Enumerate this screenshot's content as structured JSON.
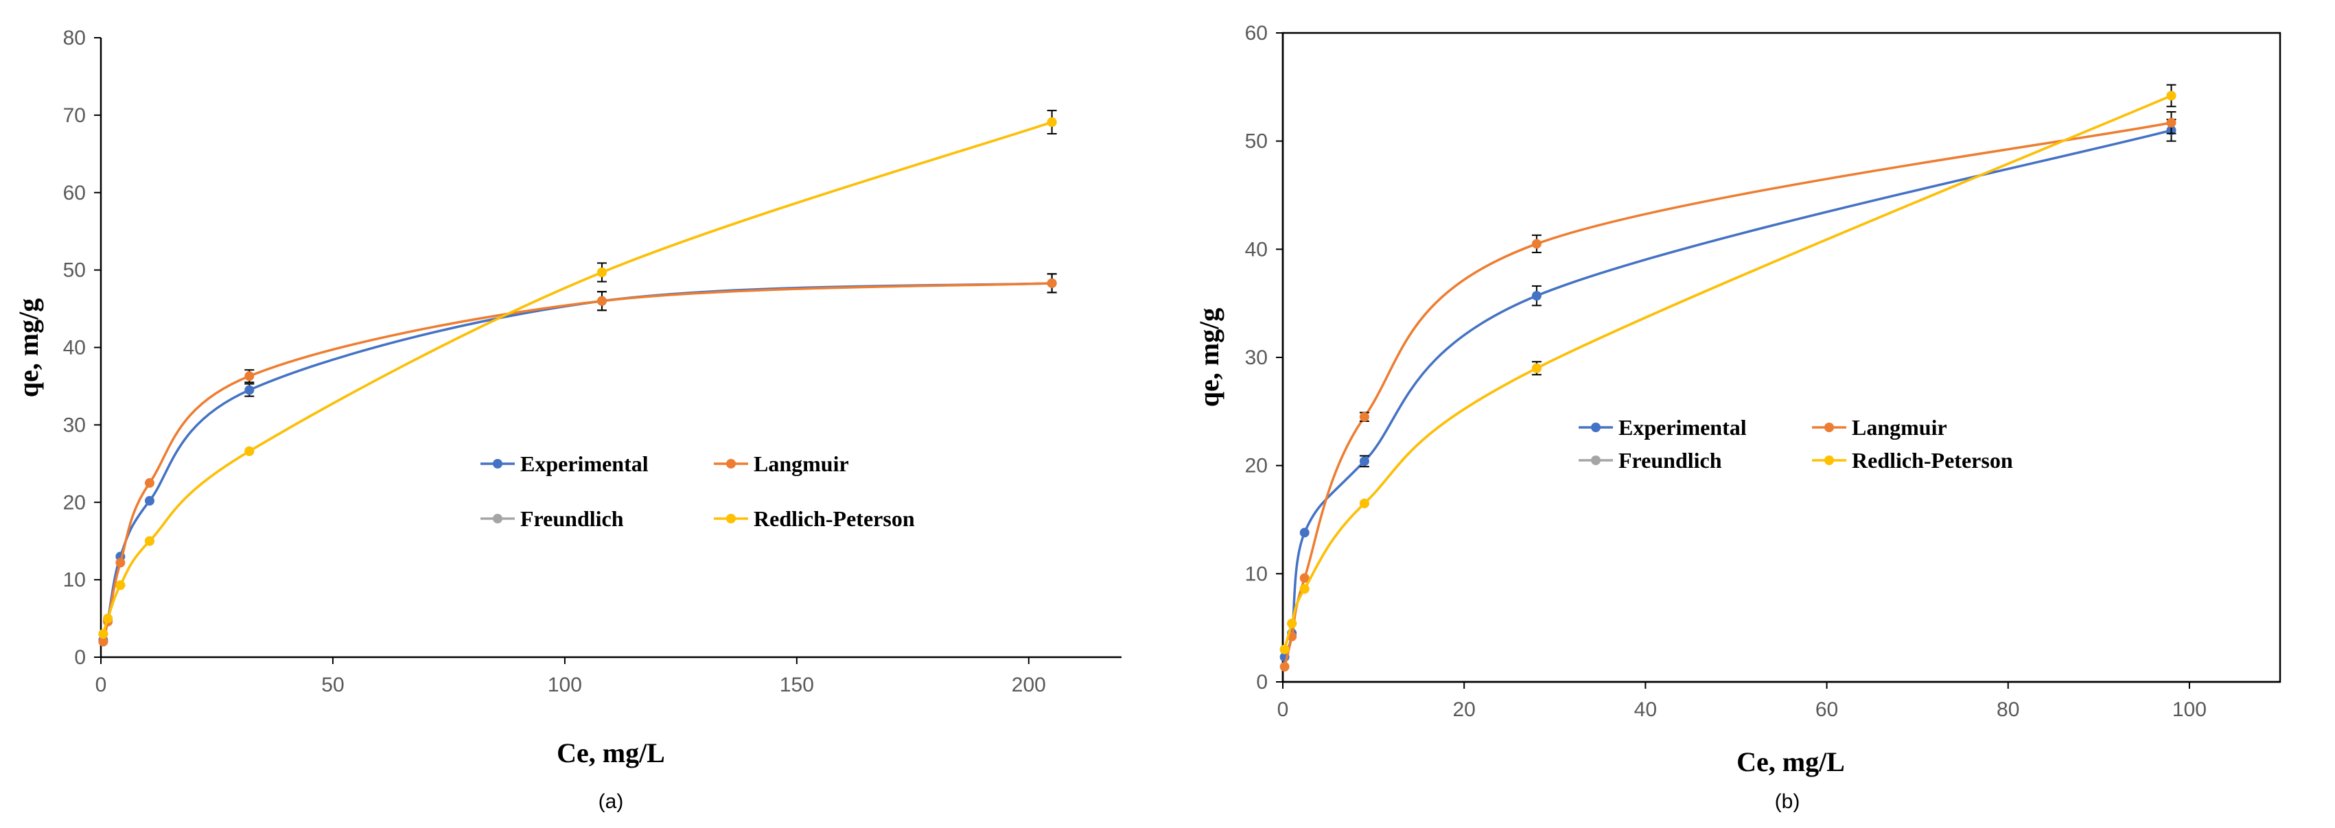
{
  "chart_data": [
    {
      "type": "line",
      "caption": "(a)",
      "xlabel": "Ce, mg/L",
      "ylabel": "qe, mg/g",
      "xlim": [
        0,
        220
      ],
      "ylim": [
        0,
        80
      ],
      "xticks": [
        0,
        50,
        100,
        150,
        200
      ],
      "yticks": [
        0,
        10,
        20,
        30,
        40,
        50,
        60,
        70,
        80
      ],
      "grid": false,
      "legend_position": "center-right",
      "series": [
        {
          "name": "Experimental",
          "color": "#4472C4",
          "x": [
            0.5,
            1.5,
            4.2,
            10.5,
            32,
            108,
            205
          ],
          "y": [
            2.2,
            4.8,
            13,
            20.2,
            34.5,
            46,
            48.3
          ],
          "err": [
            0,
            0,
            0,
            0,
            0.8,
            1.2,
            1.2
          ]
        },
        {
          "name": "Langmuir",
          "color": "#ED7D31",
          "x": [
            0.5,
            1.5,
            4.2,
            10.5,
            32,
            108,
            205
          ],
          "y": [
            2.0,
            4.6,
            12.2,
            22.5,
            36.3,
            46,
            48.3
          ],
          "err": [
            0,
            0,
            0,
            0,
            0.8,
            1.2,
            1.2
          ]
        },
        {
          "name": "Freundlich",
          "color": "#A5A5A5",
          "x": [
            0.5,
            1.5,
            4.2,
            10.5,
            32,
            108,
            205
          ],
          "y": [
            3.0,
            5.0,
            9.3,
            15,
            26.6,
            49.7,
            69.1
          ],
          "err": [
            0,
            0,
            0,
            0,
            0,
            0,
            0
          ]
        },
        {
          "name": "Redlich-Peterson",
          "color": "#FFC000",
          "x": [
            0.5,
            1.5,
            4.2,
            10.5,
            32,
            108,
            205
          ],
          "y": [
            3.0,
            5.0,
            9.3,
            15,
            26.6,
            49.7,
            69.1
          ],
          "err": [
            0,
            0,
            0,
            0,
            0,
            1.2,
            1.5
          ]
        }
      ]
    },
    {
      "type": "line",
      "caption": "(b)",
      "xlabel": "Ce, mg/L",
      "ylabel": "qe, mg/g",
      "xlim": [
        0,
        110
      ],
      "ylim": [
        0,
        60
      ],
      "xticks": [
        0,
        20,
        40,
        60,
        80,
        100
      ],
      "yticks": [
        0,
        10,
        20,
        30,
        40,
        50,
        60
      ],
      "grid": false,
      "legend_position": "center",
      "series": [
        {
          "name": "Experimental",
          "color": "#4472C4",
          "x": [
            0.2,
            1.0,
            2.4,
            9,
            28,
            98
          ],
          "y": [
            2.3,
            4.5,
            13.8,
            20.4,
            35.7,
            51
          ],
          "err": [
            0,
            0,
            0,
            0.5,
            0.9,
            1.0
          ]
        },
        {
          "name": "Langmuir",
          "color": "#ED7D31",
          "x": [
            0.2,
            1.0,
            2.4,
            9,
            28,
            98
          ],
          "y": [
            1.4,
            4.2,
            9.6,
            24.5,
            40.5,
            51.7
          ],
          "err": [
            0,
            0,
            0,
            0.4,
            0.8,
            1.0
          ]
        },
        {
          "name": "Freundlich",
          "color": "#A5A5A5",
          "x": [
            0.2,
            1.0,
            2.4,
            9,
            28,
            98
          ],
          "y": [
            3.0,
            5.4,
            8.6,
            16.5,
            29.0,
            54.2
          ],
          "err": [
            0,
            0,
            0,
            0,
            0,
            0
          ]
        },
        {
          "name": "Redlich-Peterson",
          "color": "#FFC000",
          "x": [
            0.2,
            1.0,
            2.4,
            9,
            28,
            98
          ],
          "y": [
            3.0,
            5.4,
            8.6,
            16.5,
            29.0,
            54.2
          ],
          "err": [
            0,
            0,
            0,
            0,
            0.6,
            1.0
          ]
        }
      ]
    }
  ]
}
